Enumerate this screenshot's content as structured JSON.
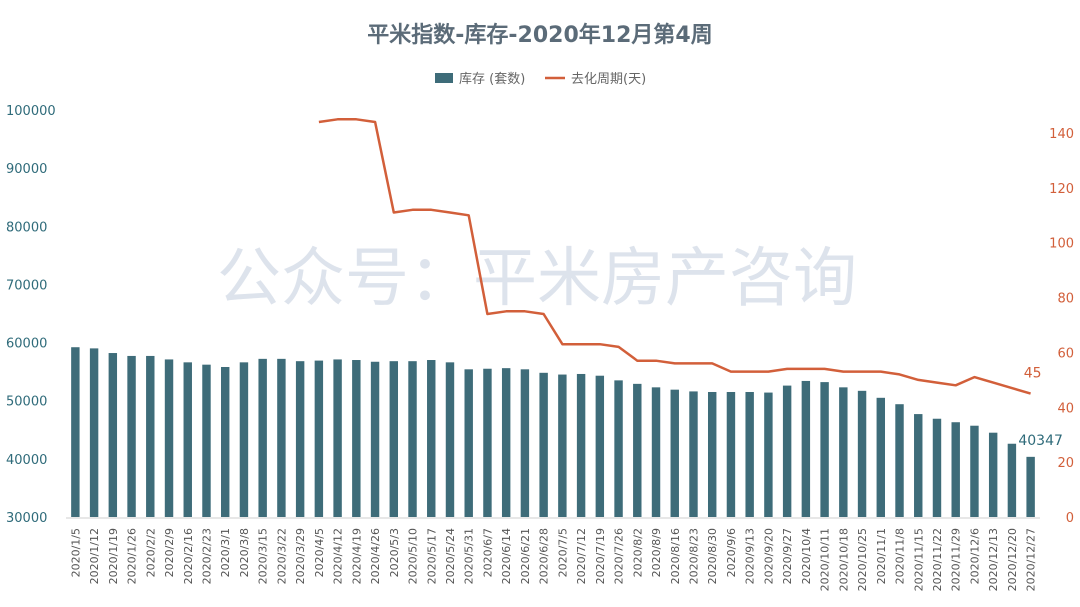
{
  "watermark": "公众号：平米房产咨询",
  "chart_data": {
    "type": "bar",
    "title": "平米指数-库存-2020年12月第4周",
    "legend": [
      {
        "name": "库存 (套数)",
        "type": "bar",
        "color": "#3e6c79"
      },
      {
        "name": "去化周期(天)",
        "type": "line",
        "color": "#d25f3a"
      }
    ],
    "legend_position": "top-center",
    "grid": false,
    "categories": [
      "2020/1/5",
      "2020/1/12",
      "2020/1/19",
      "2020/1/26",
      "2020/2/2",
      "2020/2/9",
      "2020/2/16",
      "2020/2/23",
      "2020/3/1",
      "2020/3/8",
      "2020/3/15",
      "2020/3/22",
      "2020/3/29",
      "2020/4/5",
      "2020/4/12",
      "2020/4/19",
      "2020/4/26",
      "2020/5/3",
      "2020/5/10",
      "2020/5/17",
      "2020/5/24",
      "2020/5/31",
      "2020/6/7",
      "2020/6/14",
      "2020/6/21",
      "2020/6/28",
      "2020/7/5",
      "2020/7/12",
      "2020/7/19",
      "2020/7/26",
      "2020/8/2",
      "2020/8/9",
      "2020/8/16",
      "2020/8/23",
      "2020/8/30",
      "2020/9/6",
      "2020/9/13",
      "2020/9/20",
      "2020/9/27",
      "2020/10/4",
      "2020/10/11",
      "2020/10/18",
      "2020/10/25",
      "2020/11/1",
      "2020/11/8",
      "2020/11/15",
      "2020/11/22",
      "2020/11/29",
      "2020/12/6",
      "2020/12/13",
      "2020/12/20",
      "2020/12/27"
    ],
    "series": [
      {
        "name": "库存 (套数)",
        "type": "bar",
        "axis": "left",
        "values": [
          59200,
          59000,
          58200,
          57700,
          57700,
          57100,
          56600,
          56200,
          55800,
          56600,
          57200,
          57200,
          56800,
          56900,
          57100,
          57000,
          56700,
          56800,
          56800,
          57000,
          56600,
          55400,
          55500,
          55600,
          55400,
          54800,
          54500,
          54600,
          54300,
          53500,
          52900,
          52300,
          51900,
          51600,
          51500,
          51500,
          51500,
          51400,
          52600,
          53400,
          53200,
          52300,
          51700,
          50500,
          49400,
          47700,
          46900,
          46300,
          45700,
          44500,
          42600,
          40347
        ],
        "data_labels": [
          {
            "index": 51,
            "text": "40347"
          }
        ]
      },
      {
        "name": "去化周期(天)",
        "type": "line",
        "axis": "right",
        "values": [
          null,
          null,
          null,
          null,
          null,
          null,
          null,
          null,
          null,
          null,
          null,
          null,
          null,
          144,
          145,
          145,
          144,
          111,
          112,
          112,
          111,
          110,
          74,
          75,
          75,
          74,
          63,
          63,
          63,
          62,
          57,
          57,
          56,
          56,
          56,
          53,
          53,
          53,
          54,
          54,
          54,
          53,
          53,
          53,
          52,
          50,
          49,
          48,
          51,
          49,
          47,
          45
        ],
        "data_labels": [
          {
            "index": 51,
            "text": "45"
          }
        ]
      }
    ],
    "y_left": {
      "min": 30000,
      "max": 100000,
      "ticks": [
        "30000",
        "40000",
        "50000",
        "60000",
        "70000",
        "80000",
        "90000",
        "100000"
      ]
    },
    "y_right": {
      "min": 0,
      "max": 140,
      "ticks": [
        "0",
        "20",
        "40",
        "60",
        "80",
        "100",
        "120",
        "140"
      ]
    }
  }
}
